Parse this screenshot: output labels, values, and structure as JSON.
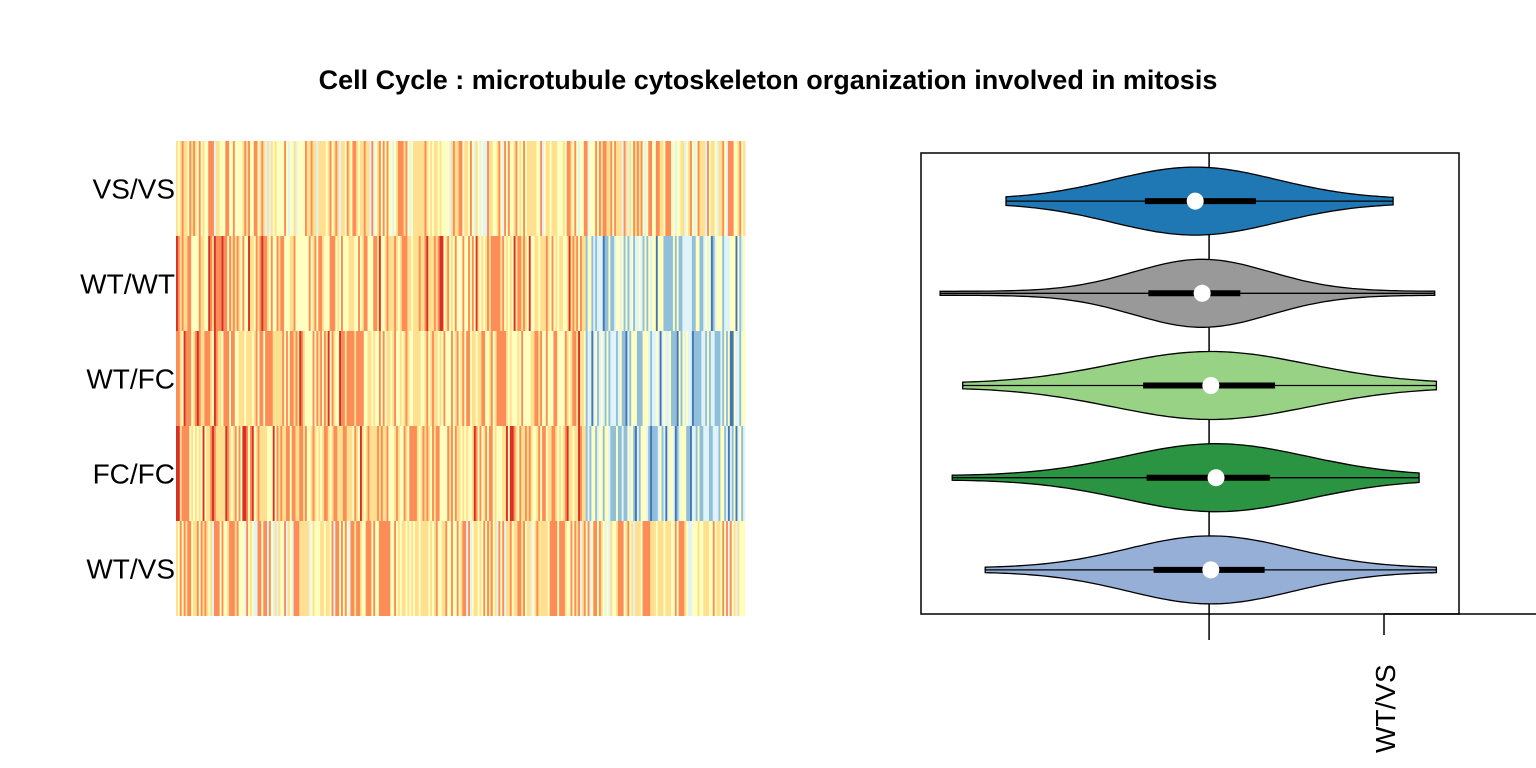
{
  "chart_data": [
    {
      "type": "heatmap",
      "title": "Cell Cycle : microtubule cytoskeleton organization involved in mitosis",
      "rows": [
        "VS/VS",
        "WT/WT",
        "WT/FC",
        "FC/FC",
        "WT/VS"
      ],
      "color_scale": [
        "#4575b4",
        "#91bfdb",
        "#e0f3f8",
        "#ffffbf",
        "#fee090",
        "#fc8d59",
        "#d73027"
      ],
      "column_count": 300
    },
    {
      "type": "violin",
      "orientation": "horizontal",
      "reference_line": 0,
      "tick_labels": [
        "WT/VS"
      ],
      "series": [
        {
          "name": "VS/VS",
          "color": "#1f78b4",
          "min": -1.17,
          "q1": -0.37,
          "median": -0.08,
          "q3": 0.27,
          "max": 1.06
        },
        {
          "name": "WT/WT",
          "color": "#999999",
          "min": -1.55,
          "q1": -0.35,
          "median": -0.04,
          "q3": 0.18,
          "max": 1.3
        },
        {
          "name": "WT/FC",
          "color": "#98d385",
          "min": -1.42,
          "q1": -0.38,
          "median": 0.01,
          "q3": 0.38,
          "max": 1.31
        },
        {
          "name": "FC/FC",
          "color": "#2b9443",
          "min": -1.48,
          "q1": -0.36,
          "median": 0.04,
          "q3": 0.35,
          "max": 1.21
        },
        {
          "name": "WT/VS",
          "color": "#96afd6",
          "min": -1.29,
          "q1": -0.32,
          "median": 0.01,
          "q3": 0.32,
          "max": 1.31
        }
      ],
      "xlim": [
        -1.66,
        1.44
      ]
    }
  ]
}
